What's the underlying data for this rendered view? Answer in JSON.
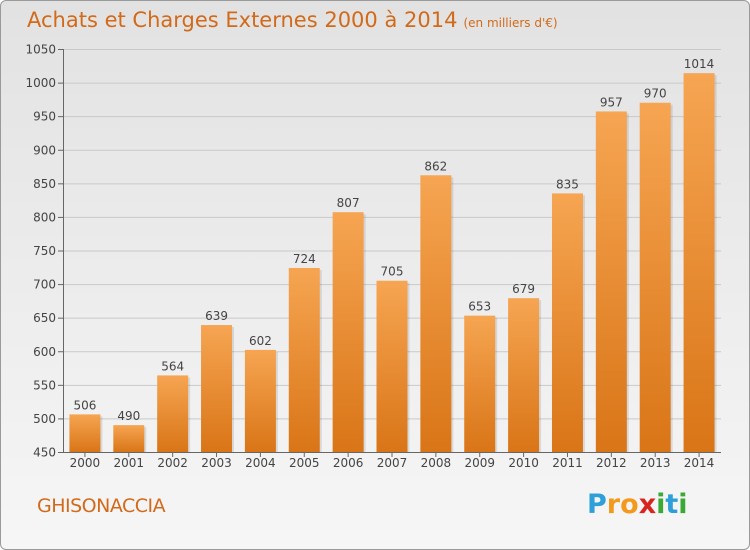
{
  "title": "Achats et Charges Externes 2000 à 2014",
  "subtitle": "(en milliers d'€)",
  "town": "GHISONACCIA",
  "logo": {
    "text": "Proxiti",
    "letters": [
      "P",
      "r",
      "o",
      "x",
      "i",
      "t",
      "i"
    ],
    "colors": [
      "#2e9fd8",
      "#f39a1e",
      "#f39a1e",
      "#d8241f",
      "#3aa935",
      "#2e9fd8",
      "#3aa935"
    ]
  },
  "colors": {
    "bar_top": "#f6a552",
    "bar_bottom": "#d97517",
    "text": "#d26a1a"
  },
  "chart_data": {
    "type": "bar",
    "title": "Achats et Charges Externes 2000 à 2014",
    "subtitle": "(en milliers d'€)",
    "categories": [
      "2000",
      "2001",
      "2002",
      "2003",
      "2004",
      "2005",
      "2006",
      "2007",
      "2008",
      "2009",
      "2010",
      "2011",
      "2012",
      "2013",
      "2014"
    ],
    "values": [
      506,
      490,
      564,
      639,
      602,
      724,
      807,
      705,
      862,
      653,
      679,
      835,
      957,
      970,
      1014
    ],
    "ylim": [
      450,
      1050
    ],
    "yticks": [
      450,
      500,
      550,
      600,
      650,
      700,
      750,
      800,
      850,
      900,
      950,
      1000,
      1050
    ],
    "grid": true,
    "data_labels": true
  }
}
